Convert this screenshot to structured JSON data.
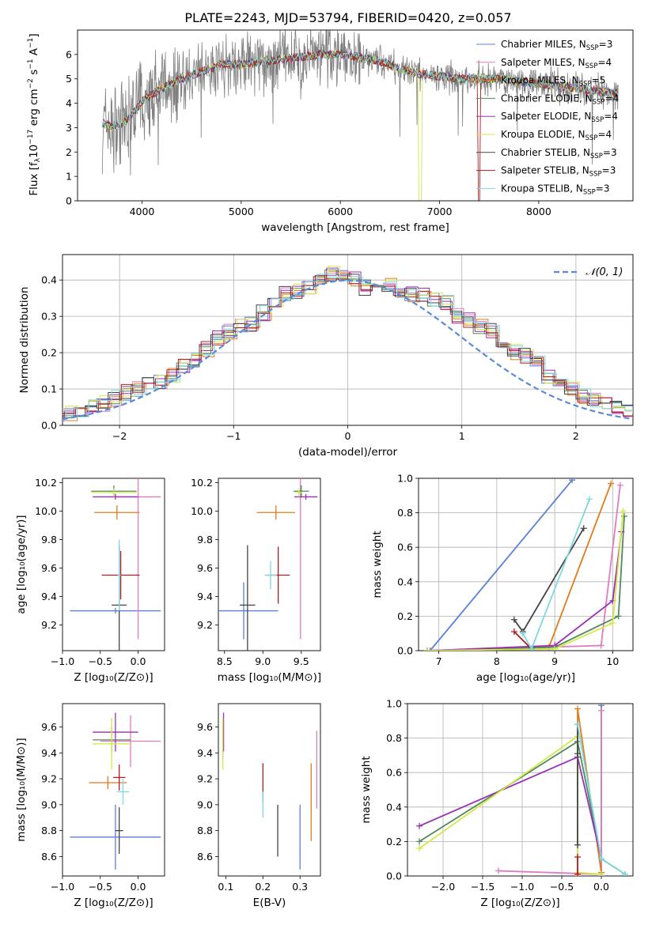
{
  "title": "PLATE=2243, MJD=53794, FIBERID=0420, z=0.057",
  "colors": {
    "Chabrier MILES": "#5b7fd6",
    "Salpeter MILES": "#e07bbf",
    "Kroupa MILES": "#e07b1a",
    "Chabrier ELODIE": "#4e8a5b",
    "Salpeter ELODIE": "#9a2fb5",
    "Kroupa ELODIE": "#d4e84a",
    "Chabrier STELIB": "#444444",
    "Salpeter STELIB": "#b01e1e",
    "Kroupa STELIB": "#7fd8e0",
    "data": "#808080",
    "gauss": "#5b8bd6"
  },
  "chart_data": [
    {
      "id": "spectrum",
      "type": "line",
      "xlabel": "wavelength [Angstrom, rest frame]",
      "ylabel": "Flux [f",
      "xlim": [
        3350,
        8950
      ],
      "ylim": [
        0,
        7
      ],
      "xticks": [
        "4000",
        "5000",
        "6000",
        "7000",
        "8000"
      ],
      "yticks": [
        "0",
        "1",
        "2",
        "3",
        "4",
        "5",
        "6"
      ],
      "legend_position": "top-right",
      "legend": [
        {
          "name": "Chabrier MILES",
          "nssp": "3"
        },
        {
          "name": "Salpeter MILES",
          "nssp": "4"
        },
        {
          "name": "Kroupa MILES",
          "nssp": "5"
        },
        {
          "name": "Chabrier ELODIE",
          "nssp": "4"
        },
        {
          "name": "Salpeter ELODIE",
          "nssp": "4"
        },
        {
          "name": "Kroupa ELODIE",
          "nssp": "4"
        },
        {
          "name": "Chabrier STELIB",
          "nssp": "3"
        },
        {
          "name": "Salpeter STELIB",
          "nssp": "3"
        },
        {
          "name": "Kroupa STELIB",
          "nssp": "3"
        }
      ],
      "continuum": [
        [
          3600,
          3.2
        ],
        [
          3700,
          3.0
        ],
        [
          3850,
          3.3
        ],
        [
          3950,
          3.8
        ],
        [
          4000,
          4.1
        ],
        [
          4200,
          4.6
        ],
        [
          4400,
          5.0
        ],
        [
          4600,
          5.3
        ],
        [
          4800,
          5.6
        ],
        [
          5000,
          5.6
        ],
        [
          5200,
          5.7
        ],
        [
          5400,
          5.8
        ],
        [
          5600,
          5.9
        ],
        [
          5800,
          6.0
        ],
        [
          6000,
          6.0
        ],
        [
          6200,
          5.9
        ],
        [
          6400,
          5.7
        ],
        [
          6600,
          5.4
        ],
        [
          6800,
          5.2
        ],
        [
          7000,
          5.1
        ],
        [
          7200,
          5.0
        ],
        [
          7400,
          5.0
        ],
        [
          7600,
          5.0
        ],
        [
          7800,
          4.9
        ],
        [
          8000,
          4.8
        ],
        [
          8200,
          4.7
        ],
        [
          8400,
          4.6
        ],
        [
          8600,
          4.5
        ],
        [
          8800,
          4.4
        ]
      ]
    },
    {
      "id": "residuals",
      "type": "bar",
      "xlabel": "(data-model)/error",
      "ylabel": "Normed distribution",
      "xlim": [
        -2.5,
        2.5
      ],
      "ylim": [
        0,
        0.47
      ],
      "xticks": [
        "−2",
        "−1",
        "0",
        "1",
        "2"
      ],
      "yticks": [
        "0.0",
        "0.1",
        "0.2",
        "0.3",
        "0.4"
      ],
      "gauss_label": "𝒩(0, 1)",
      "legend_position": "top-right",
      "hist": [
        0.02,
        0.03,
        0.035,
        0.04,
        0.05,
        0.06,
        0.075,
        0.09,
        0.1,
        0.11,
        0.12,
        0.14,
        0.16,
        0.18,
        0.21,
        0.24,
        0.26,
        0.27,
        0.28,
        0.31,
        0.33,
        0.36,
        0.37,
        0.38,
        0.4,
        0.42,
        0.41,
        0.4,
        0.38,
        0.37,
        0.39,
        0.37,
        0.36,
        0.36,
        0.35,
        0.34,
        0.3,
        0.29,
        0.27,
        0.26,
        0.22,
        0.2,
        0.19,
        0.17,
        0.13,
        0.12,
        0.1,
        0.08,
        0.07,
        0.06,
        0.05,
        0.04,
        0.04,
        0.03
      ]
    },
    {
      "id": "age-vs-Z",
      "type": "scatter",
      "xlabel": "Z [log₁₀(Z/Z⊙)]",
      "ylabel": "age  [log₁₀(age/yr)]",
      "xlim": [
        -1.0,
        0.35
      ],
      "ylim": [
        9.02,
        10.23
      ],
      "xticks": [
        "−1.0",
        "−0.5",
        "0.0"
      ],
      "yticks": [
        "9.2",
        "9.4",
        "9.6",
        "9.8",
        "10.0",
        "10.2"
      ],
      "points": [
        {
          "model": "Chabrier MILES",
          "x": -0.3,
          "y": 9.3,
          "xerr": 0.6,
          "yerr": 0.02
        },
        {
          "model": "Salpeter MILES",
          "x": 0.0,
          "y": 10.1,
          "xerr": 0.3,
          "yerr": 1.0
        },
        {
          "model": "Kroupa MILES",
          "x": -0.28,
          "y": 9.99,
          "xerr": 0.3,
          "yerr": 0.05
        },
        {
          "model": "Chabrier ELODIE",
          "x": -0.32,
          "y": 10.14,
          "xerr": 0.3,
          "yerr": 0.04
        },
        {
          "model": "Salpeter ELODIE",
          "x": -0.3,
          "y": 10.1,
          "xerr": 0.3,
          "yerr": 0.02
        },
        {
          "model": "Kroupa ELODIE",
          "x": -0.32,
          "y": 10.13,
          "xerr": 0.3,
          "yerr": 0.03
        },
        {
          "model": "Chabrier STELIB",
          "x": -0.25,
          "y": 9.34,
          "xerr": 0.1,
          "yerr": 0.42
        },
        {
          "model": "Salpeter STELIB",
          "x": -0.23,
          "y": 9.55,
          "xerr": 0.25,
          "yerr": 0.17
        },
        {
          "model": "Kroupa STELIB",
          "x": -0.25,
          "y": 9.55,
          "xerr": 0.02,
          "yerr": 0.25
        }
      ]
    },
    {
      "id": "age-vs-mass",
      "type": "scatter",
      "xlabel": "mass [log₁₀(M/M⊙)]",
      "ylabel": "",
      "xlim": [
        8.42,
        9.75
      ],
      "ylim": [
        9.02,
        10.23
      ],
      "xticks": [
        "8.5",
        "9.0",
        "9.5"
      ],
      "yticks": [
        "9.2",
        "9.4",
        "9.6",
        "9.8",
        "10.0",
        "10.2"
      ],
      "points": [
        {
          "model": "Chabrier MILES",
          "x": 8.75,
          "y": 9.3,
          "xerr": 0.45,
          "yerr": 0.2
        },
        {
          "model": "Salpeter MILES",
          "x": 9.49,
          "y": 10.1,
          "xerr": 0.02,
          "yerr": 1.0
        },
        {
          "model": "Kroupa MILES",
          "x": 9.17,
          "y": 9.99,
          "xerr": 0.25,
          "yerr": 0.05
        },
        {
          "model": "Chabrier ELODIE",
          "x": 9.5,
          "y": 10.14,
          "xerr": 0.1,
          "yerr": 0.04
        },
        {
          "model": "Salpeter ELODIE",
          "x": 9.56,
          "y": 10.1,
          "xerr": 0.15,
          "yerr": 0.02
        },
        {
          "model": "Kroupa ELODIE",
          "x": 9.47,
          "y": 10.13,
          "xerr": 0.05,
          "yerr": 0.03
        },
        {
          "model": "Chabrier STELIB",
          "x": 8.8,
          "y": 9.34,
          "xerr": 0.1,
          "yerr": 0.42
        },
        {
          "model": "Salpeter STELIB",
          "x": 9.2,
          "y": 9.55,
          "xerr": 0.15,
          "yerr": 0.2
        },
        {
          "model": "Kroupa STELIB",
          "x": 9.1,
          "y": 9.55,
          "xerr": 0.08,
          "yerr": 0.1
        }
      ]
    },
    {
      "id": "weight-vs-age",
      "type": "line",
      "xlabel": "age  [log₁₀(age/yr)]",
      "ylabel": "mass weight",
      "xlim": [
        6.65,
        10.35
      ],
      "ylim": [
        0,
        1.0
      ],
      "xticks": [
        "7",
        "8",
        "9",
        "10"
      ],
      "yticks": [
        "0.0",
        "0.2",
        "0.4",
        "0.6",
        "0.8",
        "1.0"
      ],
      "series": [
        {
          "name": "Chabrier MILES",
          "x": [
            6.85,
            9.3
          ],
          "y": [
            0.0,
            0.99
          ]
        },
        {
          "name": "Salpeter MILES",
          "x": [
            6.8,
            9.8,
            10.13
          ],
          "y": [
            0.0,
            0.03,
            0.96
          ]
        },
        {
          "name": "Kroupa MILES",
          "x": [
            6.8,
            8.9,
            9.97
          ],
          "y": [
            0.0,
            0.02,
            0.97
          ]
        },
        {
          "name": "Chabrier ELODIE",
          "x": [
            6.8,
            9.0,
            10.1,
            10.2
          ],
          "y": [
            0.0,
            0.02,
            0.2,
            0.78
          ]
        },
        {
          "name": "Salpeter ELODIE",
          "x": [
            6.8,
            9.0,
            10.0,
            10.15
          ],
          "y": [
            0.0,
            0.03,
            0.29,
            0.69
          ]
        },
        {
          "name": "Kroupa ELODIE",
          "x": [
            6.8,
            9.0,
            10.0,
            10.18
          ],
          "y": [
            0.0,
            0.01,
            0.16,
            0.81
          ]
        },
        {
          "name": "Chabrier STELIB",
          "x": [
            8.3,
            8.45,
            9.5
          ],
          "y": [
            0.18,
            0.11,
            0.71
          ]
        },
        {
          "name": "Salpeter STELIB",
          "x": [
            8.3,
            8.6
          ],
          "y": [
            0.11,
            0.01
          ]
        },
        {
          "name": "Kroupa STELIB",
          "x": [
            8.45,
            8.6,
            9.6
          ],
          "y": [
            0.1,
            0.01,
            0.88
          ]
        }
      ]
    },
    {
      "id": "mass-vs-Z",
      "type": "scatter",
      "xlabel": "Z [log₁₀(Z/Z⊙)]",
      "ylabel": "mass [log₁₀(M/M⊙)]",
      "xlim": [
        -1.0,
        0.35
      ],
      "ylim": [
        8.45,
        9.78
      ],
      "xticks": [
        "−1.0",
        "−0.5",
        "0.0"
      ],
      "yticks": [
        "8.6",
        "8.8",
        "9.0",
        "9.2",
        "9.4",
        "9.6"
      ],
      "points": [
        {
          "model": "Chabrier MILES",
          "x": -0.3,
          "y": 8.75,
          "xerr": 0.6,
          "yerr": 0.25
        },
        {
          "model": "Salpeter MILES",
          "x": -0.1,
          "y": 9.49,
          "xerr": 0.4,
          "yerr": 0.2
        },
        {
          "model": "Kroupa MILES",
          "x": -0.4,
          "y": 9.17,
          "xerr": 0.25,
          "yerr": 0.05
        },
        {
          "model": "Chabrier ELODIE",
          "x": -0.35,
          "y": 9.5,
          "xerr": 0.25,
          "yerr": 0.1
        },
        {
          "model": "Salpeter ELODIE",
          "x": -0.3,
          "y": 9.56,
          "xerr": 0.3,
          "yerr": 0.15
        },
        {
          "model": "Kroupa ELODIE",
          "x": -0.35,
          "y": 9.47,
          "xerr": 0.25,
          "yerr": 0.2
        },
        {
          "model": "Chabrier STELIB",
          "x": -0.25,
          "y": 8.8,
          "xerr": 0.05,
          "yerr": 0.18
        },
        {
          "model": "Salpeter STELIB",
          "x": -0.25,
          "y": 9.21,
          "xerr": 0.08,
          "yerr": 0.1
        },
        {
          "model": "Kroupa STELIB",
          "x": -0.2,
          "y": 9.1,
          "xerr": 0.08,
          "yerr": 0.1
        }
      ]
    },
    {
      "id": "mass-vs-EBV",
      "type": "scatter",
      "xlabel": "E(B-V)",
      "ylabel": "",
      "xlim": [
        0.08,
        0.355
      ],
      "ylim": [
        8.45,
        9.78
      ],
      "xticks": [
        "0.1",
        "0.2",
        "0.3"
      ],
      "yticks": [
        "8.6",
        "8.8",
        "9.0",
        "9.2",
        "9.4",
        "9.6"
      ],
      "points": [
        {
          "model": "Chabrier MILES",
          "x": 0.3,
          "y": 8.75,
          "xerr": 0,
          "yerr": 0.25
        },
        {
          "model": "Salpeter MILES",
          "x": 0.345,
          "y": 9.27,
          "xerr": 0,
          "yerr": 0.3
        },
        {
          "model": "Kroupa MILES",
          "x": 0.33,
          "y": 9.02,
          "xerr": 0,
          "yerr": 0.3
        },
        {
          "model": "Chabrier ELODIE",
          "x": 0.092,
          "y": 9.5,
          "xerr": 0,
          "yerr": 0.15
        },
        {
          "model": "Salpeter ELODIE",
          "x": 0.094,
          "y": 9.56,
          "xerr": 0,
          "yerr": 0.15
        },
        {
          "model": "Kroupa ELODIE",
          "x": 0.092,
          "y": 9.47,
          "xerr": 0,
          "yerr": 0.2
        },
        {
          "model": "Chabrier STELIB",
          "x": 0.24,
          "y": 8.8,
          "xerr": 0,
          "yerr": 0.2
        },
        {
          "model": "Salpeter STELIB",
          "x": 0.2,
          "y": 9.17,
          "xerr": 0,
          "yerr": 0.15
        },
        {
          "model": "Kroupa STELIB",
          "x": 0.2,
          "y": 9.0,
          "xerr": 0,
          "yerr": 0.1
        }
      ]
    },
    {
      "id": "weight-vs-Z",
      "type": "line",
      "xlabel": "Z [log₁₀(Z/Z⊙)]",
      "ylabel": "mass weight",
      "xlim": [
        -2.45,
        0.4
      ],
      "ylim": [
        0,
        1.0
      ],
      "xticks": [
        "−2.0",
        "−1.5",
        "−1.0",
        "−0.5",
        "0.0"
      ],
      "yticks": [
        "0.0",
        "0.2",
        "0.4",
        "0.6",
        "0.8",
        "1.0"
      ],
      "series": [
        {
          "name": "Chabrier MILES",
          "x": [
            0.0,
            0.0
          ],
          "y": [
            0.0,
            0.99
          ]
        },
        {
          "name": "Salpeter MILES",
          "x": [
            -1.3,
            0.0,
            0.0
          ],
          "y": [
            0.03,
            0.01,
            0.96
          ]
        },
        {
          "name": "Kroupa MILES",
          "x": [
            -0.3,
            -0.3,
            0.0
          ],
          "y": [
            0.0,
            0.97,
            0.02
          ]
        },
        {
          "name": "Chabrier ELODIE",
          "x": [
            -2.3,
            -0.3,
            0.0,
            0.3
          ],
          "y": [
            0.2,
            0.78,
            0.1,
            0.01
          ]
        },
        {
          "name": "Salpeter ELODIE",
          "x": [
            -2.3,
            -0.3,
            0.0
          ],
          "y": [
            0.29,
            0.69,
            0.1
          ]
        },
        {
          "name": "Kroupa ELODIE",
          "x": [
            -2.3,
            -0.3,
            -0.3,
            0.0
          ],
          "y": [
            0.16,
            0.81,
            0.02,
            0.01
          ]
        },
        {
          "name": "Chabrier STELIB",
          "x": [
            -0.3,
            -0.3,
            -0.3
          ],
          "y": [
            0.18,
            0.71,
            0.88
          ]
        },
        {
          "name": "Salpeter STELIB",
          "x": [
            -0.3,
            -0.3
          ],
          "y": [
            0.11,
            0.01
          ]
        },
        {
          "name": "Kroupa STELIB",
          "x": [
            -0.3,
            0.0,
            0.3
          ],
          "y": [
            0.88,
            0.1,
            0.01
          ]
        }
      ]
    }
  ]
}
